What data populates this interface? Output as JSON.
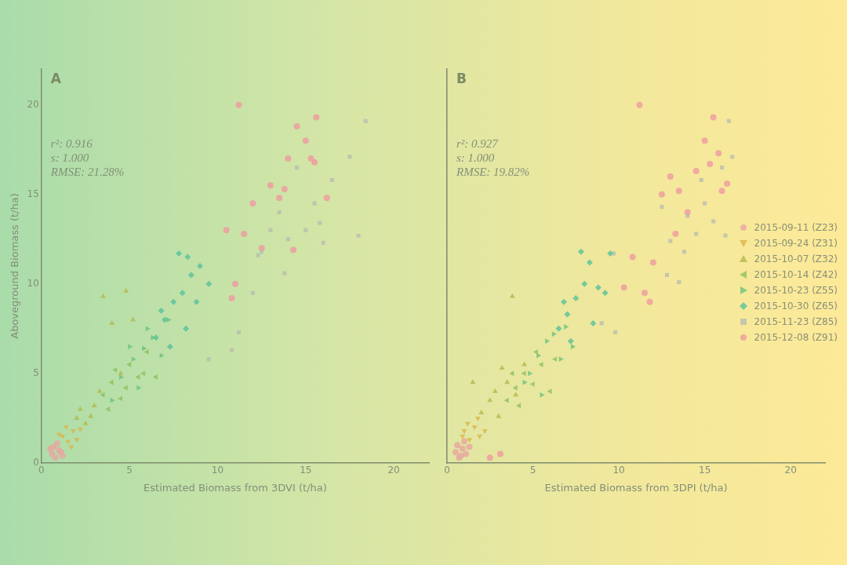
{
  "chart_data": [
    {
      "type": "scatter",
      "title": "A",
      "annotations": [
        "r²: 0.916",
        "s: 1.000",
        "RMSE: 21.28%"
      ],
      "x_label": "Estimated Biomass from 3DVI (t/ha)",
      "y_label": "Aboveground Biomass (t/ha)",
      "xlim": [
        0,
        22
      ],
      "ylim": [
        0,
        22
      ],
      "xticks": [
        0,
        5,
        10,
        15,
        20
      ],
      "yticks": [
        0,
        5,
        10,
        15,
        20
      ],
      "grid": false,
      "series": [
        {
          "name": "2015-09-11 (Z23)",
          "color": "#e9a6a0",
          "marker": "circle",
          "values": [
            [
              0.6,
              0.5
            ],
            [
              0.8,
              0.3
            ],
            [
              1.0,
              0.7
            ],
            [
              0.7,
              0.9
            ],
            [
              1.2,
              0.4
            ],
            [
              0.9,
              1.1
            ],
            [
              1.1,
              0.6
            ],
            [
              0.5,
              0.8
            ]
          ]
        },
        {
          "name": "2015-09-24 (Z31)",
          "color": "#d9b548",
          "marker": "triangle_down",
          "values": [
            [
              1.2,
              1.5
            ],
            [
              1.5,
              1.2
            ],
            [
              1.8,
              1.8
            ],
            [
              1.0,
              1.6
            ],
            [
              2.0,
              1.3
            ],
            [
              1.4,
              2.0
            ],
            [
              1.7,
              0.9
            ],
            [
              2.2,
              1.9
            ]
          ]
        },
        {
          "name": "2015-10-07 (Z32)",
          "color": "#b3b94a",
          "marker": "triangle_up",
          "values": [
            [
              2.0,
              2.5
            ],
            [
              2.5,
              2.2
            ],
            [
              3.0,
              3.2
            ],
            [
              2.8,
              2.6
            ],
            [
              3.5,
              9.3
            ],
            [
              4.8,
              9.6
            ],
            [
              4.0,
              7.8
            ],
            [
              3.3,
              4.0
            ],
            [
              2.2,
              3.0
            ],
            [
              4.5,
              5.0
            ],
            [
              5.2,
              8.0
            ]
          ]
        },
        {
          "name": "2015-10-14 (Z42)",
          "color": "#8cc05a",
          "marker": "triangle_left",
          "values": [
            [
              3.5,
              3.8
            ],
            [
              4.0,
              4.5
            ],
            [
              4.5,
              3.6
            ],
            [
              5.0,
              5.5
            ],
            [
              5.5,
              4.8
            ],
            [
              6.0,
              6.2
            ],
            [
              3.8,
              3.0
            ],
            [
              4.8,
              4.2
            ],
            [
              5.8,
              5.0
            ],
            [
              6.5,
              4.8
            ],
            [
              4.2,
              5.2
            ]
          ]
        },
        {
          "name": "2015-10-23 (Z55)",
          "color": "#6cc27c",
          "marker": "triangle_right",
          "values": [
            [
              4.5,
              4.8
            ],
            [
              5.2,
              5.8
            ],
            [
              5.8,
              6.4
            ],
            [
              6.3,
              7.0
            ],
            [
              5.0,
              6.5
            ],
            [
              6.8,
              6.0
            ],
            [
              4.0,
              3.5
            ],
            [
              5.5,
              4.2
            ],
            [
              6.0,
              7.5
            ],
            [
              7.2,
              8.0
            ]
          ]
        },
        {
          "name": "2015-10-30 (Z65)",
          "color": "#57c29a",
          "marker": "diamond",
          "values": [
            [
              6.5,
              7.0
            ],
            [
              7.0,
              8.0
            ],
            [
              7.5,
              9.0
            ],
            [
              8.0,
              9.5
            ],
            [
              8.5,
              10.5
            ],
            [
              7.8,
              11.7
            ],
            [
              8.8,
              9.0
            ],
            [
              9.5,
              10.0
            ],
            [
              6.8,
              8.5
            ],
            [
              7.3,
              6.5
            ],
            [
              8.2,
              7.5
            ],
            [
              9.0,
              11.0
            ],
            [
              8.3,
              11.5
            ]
          ]
        },
        {
          "name": "2015-11-23 (Z85)",
          "color": "#b9bdb0",
          "marker": "square",
          "values": [
            [
              9.5,
              5.8
            ],
            [
              10.8,
              6.3
            ],
            [
              11.2,
              7.3
            ],
            [
              12.0,
              9.5
            ],
            [
              12.5,
              11.8
            ],
            [
              13.0,
              13.0
            ],
            [
              13.5,
              14.0
            ],
            [
              14.0,
              12.5
            ],
            [
              14.5,
              16.5
            ],
            [
              15.0,
              13.0
            ],
            [
              15.5,
              14.5
            ],
            [
              16.0,
              12.3
            ],
            [
              16.5,
              15.8
            ],
            [
              17.5,
              17.1
            ],
            [
              18.0,
              12.7
            ],
            [
              18.4,
              19.1
            ],
            [
              13.8,
              10.6
            ],
            [
              15.8,
              13.4
            ],
            [
              12.3,
              11.6
            ]
          ]
        },
        {
          "name": "2015-12-08 (Z91)",
          "color": "#ef9aa0",
          "marker": "circle",
          "values": [
            [
              10.5,
              13.0
            ],
            [
              11.0,
              10.0
            ],
            [
              11.2,
              20.0
            ],
            [
              12.5,
              12.0
            ],
            [
              13.0,
              15.5
            ],
            [
              13.5,
              14.8
            ],
            [
              14.0,
              17.0
            ],
            [
              14.5,
              18.8
            ],
            [
              15.0,
              18.0
            ],
            [
              15.6,
              19.3
            ],
            [
              15.3,
              17.0
            ],
            [
              14.3,
              11.9
            ],
            [
              15.5,
              16.8
            ],
            [
              12.0,
              14.5
            ],
            [
              10.8,
              9.2
            ],
            [
              16.2,
              14.8
            ],
            [
              13.8,
              15.3
            ],
            [
              11.5,
              12.8
            ]
          ]
        }
      ]
    },
    {
      "type": "scatter",
      "title": "B",
      "annotations": [
        "r²: 0.927",
        "s: 1.000",
        "RMSE: 19.82%"
      ],
      "x_label": "Estimated Biomass from 3DPI (t/ha)",
      "xlim": [
        0,
        22
      ],
      "ylim": [
        0,
        22
      ],
      "xticks": [
        0,
        5,
        10,
        15,
        20
      ],
      "yticks": [
        0,
        5,
        10,
        15,
        20
      ],
      "grid": false,
      "tick_labels": "x",
      "legend": "right",
      "series": [
        {
          "name": "2015-09-11 (Z23)",
          "color": "#e9a6a0",
          "marker": "circle",
          "values": [
            [
              0.5,
              0.6
            ],
            [
              0.7,
              0.3
            ],
            [
              0.9,
              0.8
            ],
            [
              1.1,
              0.5
            ],
            [
              0.6,
              1.0
            ],
            [
              1.3,
              0.9
            ],
            [
              0.8,
              0.4
            ],
            [
              1.0,
              1.2
            ]
          ]
        },
        {
          "name": "2015-09-24 (Z31)",
          "color": "#d9b548",
          "marker": "triangle_down",
          "values": [
            [
              1.0,
              1.8
            ],
            [
              1.3,
              1.3
            ],
            [
              1.6,
              2.0
            ],
            [
              1.9,
              1.5
            ],
            [
              1.2,
              2.2
            ],
            [
              2.2,
              1.8
            ],
            [
              0.9,
              1.5
            ],
            [
              1.8,
              2.5
            ]
          ]
        },
        {
          "name": "2015-10-07 (Z32)",
          "color": "#b3b94a",
          "marker": "triangle_up",
          "values": [
            [
              2.0,
              2.8
            ],
            [
              2.5,
              3.5
            ],
            [
              3.0,
              2.6
            ],
            [
              3.5,
              4.5
            ],
            [
              3.8,
              9.3
            ],
            [
              4.5,
              5.5
            ],
            [
              2.8,
              4.0
            ],
            [
              4.0,
              3.8
            ],
            [
              1.5,
              4.5
            ],
            [
              3.2,
              5.3
            ]
          ]
        },
        {
          "name": "2015-10-14 (Z42)",
          "color": "#8cc05a",
          "marker": "triangle_left",
          "values": [
            [
              3.5,
              3.5
            ],
            [
              4.0,
              4.2
            ],
            [
              4.5,
              5.0
            ],
            [
              5.0,
              4.4
            ],
            [
              5.5,
              5.5
            ],
            [
              6.0,
              4.0
            ],
            [
              5.2,
              6.2
            ],
            [
              4.2,
              3.2
            ],
            [
              6.3,
              5.8
            ],
            [
              3.8,
              5.0
            ]
          ]
        },
        {
          "name": "2015-10-23 (Z55)",
          "color": "#6cc27c",
          "marker": "triangle_right",
          "values": [
            [
              4.8,
              5.0
            ],
            [
              5.3,
              6.0
            ],
            [
              5.8,
              6.8
            ],
            [
              6.2,
              7.2
            ],
            [
              6.6,
              5.8
            ],
            [
              5.5,
              3.8
            ],
            [
              6.9,
              7.6
            ],
            [
              4.5,
              4.5
            ],
            [
              7.3,
              6.5
            ]
          ]
        },
        {
          "name": "2015-10-30 (Z65)",
          "color": "#57c29a",
          "marker": "diamond",
          "values": [
            [
              6.5,
              7.5
            ],
            [
              7.0,
              8.3
            ],
            [
              7.5,
              9.2
            ],
            [
              8.0,
              10.0
            ],
            [
              8.3,
              11.2
            ],
            [
              7.8,
              11.8
            ],
            [
              8.8,
              9.8
            ],
            [
              9.2,
              9.5
            ],
            [
              7.2,
              6.8
            ],
            [
              8.5,
              7.8
            ],
            [
              6.8,
              9.0
            ],
            [
              9.5,
              11.7
            ]
          ]
        },
        {
          "name": "2015-11-23 (Z85)",
          "color": "#b9bdb0",
          "marker": "square",
          "values": [
            [
              9.0,
              7.8
            ],
            [
              9.8,
              7.3
            ],
            [
              9.7,
              11.7
            ],
            [
              12.5,
              14.3
            ],
            [
              13.0,
              12.4
            ],
            [
              13.5,
              10.1
            ],
            [
              14.0,
              13.8
            ],
            [
              14.5,
              12.8
            ],
            [
              15.0,
              14.5
            ],
            [
              15.5,
              13.5
            ],
            [
              16.0,
              16.5
            ],
            [
              16.4,
              19.1
            ],
            [
              16.6,
              17.1
            ],
            [
              16.2,
              12.7
            ],
            [
              13.8,
              11.8
            ],
            [
              14.8,
              15.8
            ],
            [
              12.8,
              10.5
            ]
          ]
        },
        {
          "name": "2015-12-08 (Z91)",
          "color": "#ef9aa0",
          "marker": "circle",
          "values": [
            [
              11.2,
              20.0
            ],
            [
              11.5,
              9.5
            ],
            [
              12.0,
              11.2
            ],
            [
              12.5,
              15.0
            ],
            [
              13.0,
              16.0
            ],
            [
              13.5,
              15.2
            ],
            [
              14.0,
              14.0
            ],
            [
              14.5,
              16.3
            ],
            [
              15.0,
              18.0
            ],
            [
              15.5,
              19.3
            ],
            [
              15.8,
              17.3
            ],
            [
              16.0,
              15.2
            ],
            [
              11.8,
              9.0
            ],
            [
              13.3,
              12.8
            ],
            [
              10.8,
              11.5
            ],
            [
              15.3,
              16.7
            ],
            [
              16.3,
              15.6
            ],
            [
              10.3,
              9.8
            ],
            [
              2.5,
              0.3
            ],
            [
              3.1,
              0.5
            ]
          ]
        }
      ]
    }
  ]
}
